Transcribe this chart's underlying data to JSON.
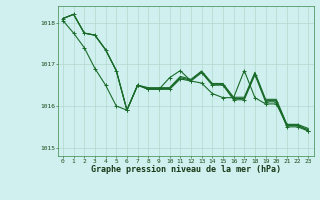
{
  "title": "Graphe pression niveau de la mer (hPa)",
  "bg_color": "#cff0ee",
  "grid_color": "#b0d8cc",
  "line_color": "#1a6b2a",
  "xlim": [
    -0.5,
    23.5
  ],
  "ylim": [
    1014.8,
    1018.4
  ],
  "yticks": [
    1015,
    1016,
    1017,
    1018
  ],
  "xticks": [
    0,
    1,
    2,
    3,
    4,
    5,
    6,
    7,
    8,
    9,
    10,
    11,
    12,
    13,
    14,
    15,
    16,
    17,
    18,
    19,
    20,
    21,
    22,
    23
  ],
  "series": [
    {
      "x": [
        0,
        1,
        2,
        3,
        4,
        5,
        6,
        7,
        8,
        9,
        10,
        11,
        12,
        13,
        14,
        15,
        16,
        17,
        18,
        19,
        20,
        21,
        22,
        23
      ],
      "y": [
        1018.1,
        1018.2,
        1017.75,
        1017.7,
        1017.35,
        1016.85,
        1015.9,
        1016.5,
        1016.4,
        1016.4,
        1016.4,
        1016.65,
        1016.6,
        1016.8,
        1016.5,
        1016.5,
        1016.15,
        1016.15,
        1016.75,
        1016.1,
        1016.1,
        1015.5,
        1015.5,
        1015.4
      ],
      "marker": true
    },
    {
      "x": [
        0,
        1,
        2,
        3,
        4,
        5,
        6,
        7,
        8,
        9,
        10,
        11,
        12,
        13,
        14,
        15,
        16,
        17,
        18,
        19,
        20,
        21,
        22,
        23
      ],
      "y": [
        1018.1,
        1018.2,
        1017.75,
        1017.7,
        1017.35,
        1016.85,
        1015.9,
        1016.5,
        1016.42,
        1016.42,
        1016.42,
        1016.68,
        1016.62,
        1016.82,
        1016.52,
        1016.52,
        1016.18,
        1016.18,
        1016.78,
        1016.13,
        1016.13,
        1015.53,
        1015.53,
        1015.43
      ],
      "marker": false
    },
    {
      "x": [
        0,
        1,
        2,
        3,
        4,
        5,
        6,
        7,
        8,
        9,
        10,
        11,
        12,
        13,
        14,
        15,
        16,
        17,
        18,
        19,
        20,
        21,
        22,
        23
      ],
      "y": [
        1018.1,
        1018.2,
        1017.75,
        1017.7,
        1017.35,
        1016.85,
        1015.9,
        1016.5,
        1016.44,
        1016.44,
        1016.44,
        1016.71,
        1016.64,
        1016.84,
        1016.54,
        1016.54,
        1016.21,
        1016.21,
        1016.81,
        1016.16,
        1016.16,
        1015.56,
        1015.56,
        1015.46
      ],
      "marker": false
    },
    {
      "x": [
        0,
        1,
        2,
        3,
        4,
        5,
        6,
        7,
        8,
        9,
        10,
        11,
        12,
        13,
        14,
        15,
        16,
        17,
        18,
        19,
        20,
        21,
        22,
        23
      ],
      "y": [
        1018.05,
        1017.75,
        1017.4,
        1016.9,
        1016.5,
        1016.0,
        1015.9,
        1016.5,
        1016.4,
        1016.4,
        1016.68,
        1016.85,
        1016.6,
        1016.55,
        1016.3,
        1016.2,
        1016.2,
        1016.85,
        1016.2,
        1016.05,
        1016.05,
        1015.55,
        1015.55,
        1015.4
      ],
      "marker": true
    }
  ]
}
